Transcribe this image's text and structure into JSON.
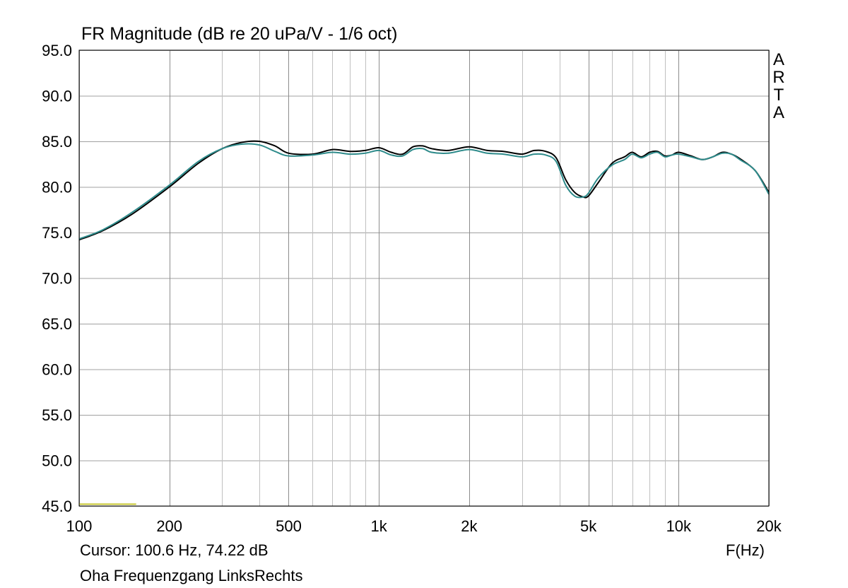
{
  "chart_data": {
    "type": "line",
    "title": "FR Magnitude (dB re 20 uPa/V - 1/6 oct)",
    "xlabel": "F(Hz)",
    "ylabel": "",
    "xscale": "log",
    "xlim": [
      100,
      20000
    ],
    "ylim": [
      45,
      95
    ],
    "grid": true,
    "y_ticks": [
      "95.0",
      "90.0",
      "85.0",
      "80.0",
      "75.0",
      "70.0",
      "65.0",
      "60.0",
      "55.0",
      "50.0",
      "45.0"
    ],
    "x_ticks": [
      {
        "value": 100,
        "label": "100"
      },
      {
        "value": 200,
        "label": "200"
      },
      {
        "value": 500,
        "label": "500"
      },
      {
        "value": 1000,
        "label": "1k"
      },
      {
        "value": 2000,
        "label": "2k"
      },
      {
        "value": 5000,
        "label": "5k"
      },
      {
        "value": 10000,
        "label": "10k"
      },
      {
        "value": 20000,
        "label": "20k"
      }
    ],
    "series": [
      {
        "color": "#000000",
        "x": [
          100,
          120,
          150,
          200,
          250,
          300,
          350,
          400,
          450,
          500,
          600,
          700,
          800,
          900,
          1000,
          1100,
          1200,
          1300,
          1400,
          1500,
          1700,
          2000,
          2300,
          2600,
          3000,
          3300,
          3600,
          3900,
          4200,
          4500,
          4800,
          5000,
          5400,
          6000,
          6600,
          7000,
          7500,
          8000,
          8500,
          9000,
          9500,
          10000,
          11000,
          12000,
          13000,
          14000,
          15000,
          16000,
          18000,
          20000
        ],
        "y": [
          74.2,
          75.2,
          77.0,
          80.0,
          82.6,
          84.2,
          84.9,
          85.0,
          84.5,
          83.7,
          83.6,
          84.1,
          83.9,
          84.0,
          84.3,
          83.8,
          83.6,
          84.4,
          84.5,
          84.2,
          84.0,
          84.4,
          84.0,
          83.9,
          83.6,
          84.0,
          83.9,
          83.2,
          80.8,
          79.4,
          78.9,
          79.0,
          80.5,
          82.6,
          83.3,
          83.8,
          83.3,
          83.8,
          83.9,
          83.4,
          83.5,
          83.8,
          83.4,
          83.0,
          83.3,
          83.8,
          83.6,
          83.1,
          81.8,
          79.4
        ]
      },
      {
        "color": "#2e8b8b",
        "x": [
          100,
          120,
          150,
          200,
          250,
          300,
          350,
          400,
          450,
          500,
          600,
          700,
          800,
          900,
          1000,
          1100,
          1200,
          1300,
          1400,
          1500,
          1700,
          2000,
          2300,
          2600,
          3000,
          3300,
          3600,
          3900,
          4200,
          4500,
          4800,
          5000,
          5400,
          6000,
          6600,
          7000,
          7500,
          8000,
          8500,
          9000,
          9500,
          10000,
          11000,
          12000,
          13000,
          14000,
          15000,
          16000,
          18000,
          20000
        ],
        "y": [
          74.3,
          75.3,
          77.2,
          80.2,
          82.8,
          84.2,
          84.7,
          84.6,
          83.9,
          83.4,
          83.5,
          83.8,
          83.6,
          83.7,
          84.0,
          83.5,
          83.4,
          84.1,
          84.2,
          83.8,
          83.7,
          84.1,
          83.7,
          83.6,
          83.3,
          83.6,
          83.5,
          82.8,
          80.2,
          79.0,
          78.9,
          79.3,
          81.0,
          82.4,
          83.0,
          83.6,
          83.2,
          83.6,
          83.8,
          83.3,
          83.5,
          83.6,
          83.3,
          83.0,
          83.3,
          83.7,
          83.6,
          83.0,
          81.8,
          79.2
        ]
      },
      {
        "color": "#c8c832",
        "x": [
          100,
          155
        ],
        "y": [
          45.2,
          45.2
        ]
      }
    ]
  },
  "cursor_text": "Cursor: 100.6 Hz, 74.22 dB",
  "file_name": "Oha Frequenzgang LinksRechts",
  "brand": [
    "A",
    "R",
    "T",
    "A"
  ]
}
